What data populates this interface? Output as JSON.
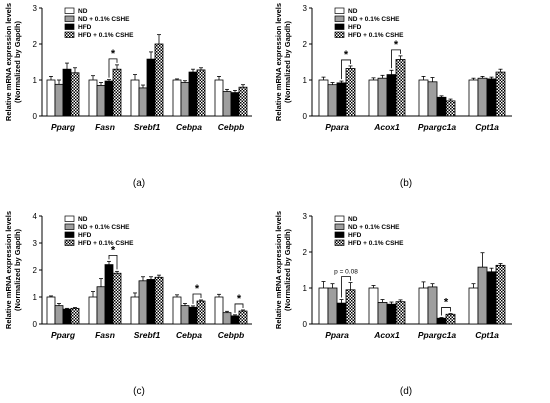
{
  "colors": {
    "nd": "#ffffff",
    "nd_cshe": "#9e9e9e",
    "hfd": "#000000",
    "hfd_cshe": "checker"
  },
  "chart_data": [
    {
      "panel": "(a)",
      "type": "bar",
      "ylabel": "Relative mRNA expression levels",
      "ylabel2": "(Normalized by Gapdh)",
      "ylim": [
        0,
        3
      ],
      "yticks": [
        "0",
        "1",
        "2",
        "3"
      ],
      "categories": [
        "Pparg",
        "Fasn",
        "Srebf1",
        "Cebpa",
        "Cebpb"
      ],
      "series": [
        {
          "name": "ND",
          "values": [
            1.0,
            1.0,
            1.0,
            1.0,
            1.0
          ],
          "errors": [
            0.1,
            0.12,
            0.15,
            0.03,
            0.1
          ]
        },
        {
          "name": "ND + 0.1% CSHE",
          "values": [
            0.88,
            0.85,
            0.78,
            0.93,
            0.68
          ],
          "errors": [
            0.12,
            0.08,
            0.08,
            0.05,
            0.06
          ]
        },
        {
          "name": "HFD",
          "values": [
            1.3,
            0.97,
            1.58,
            1.22,
            0.65
          ],
          "errors": [
            0.17,
            0.04,
            0.2,
            0.08,
            0.06
          ]
        },
        {
          "name": "HFD + 0.1% CSHE",
          "values": [
            1.2,
            1.3,
            2.0,
            1.28,
            0.8
          ],
          "errors": [
            0.14,
            0.12,
            0.26,
            0.06,
            0.07
          ]
        }
      ],
      "significance": [
        {
          "category": "Fasn",
          "from": 2,
          "to": 3,
          "label": "*"
        }
      ]
    },
    {
      "panel": "(b)",
      "type": "bar",
      "ylabel": "Relative mRNA expression levels",
      "ylabel2": "(Normalized by Gapdh)",
      "ylim": [
        0,
        3
      ],
      "yticks": [
        "0",
        "1",
        "2",
        "3"
      ],
      "categories": [
        "Ppara",
        "Acox1",
        "Ppargc1a",
        "Cpt1a"
      ],
      "series": [
        {
          "name": "ND",
          "values": [
            1.0,
            1.0,
            1.0,
            1.0
          ],
          "errors": [
            0.08,
            0.06,
            0.1,
            0.05
          ]
        },
        {
          "name": "ND + 0.1% CSHE",
          "values": [
            0.87,
            1.05,
            0.95,
            1.05
          ],
          "errors": [
            0.06,
            0.08,
            0.12,
            0.05
          ]
        },
        {
          "name": "HFD",
          "values": [
            0.92,
            1.15,
            0.52,
            1.03
          ],
          "errors": [
            0.05,
            0.12,
            0.04,
            0.05
          ]
        },
        {
          "name": "HFD + 0.1% CSHE",
          "values": [
            1.32,
            1.57,
            0.42,
            1.22
          ],
          "errors": [
            0.07,
            0.1,
            0.05,
            0.08
          ]
        }
      ],
      "significance": [
        {
          "category": "Ppara",
          "from": 2,
          "to": 3,
          "label": "*"
        },
        {
          "category": "Acox1",
          "from": 2,
          "to": 3,
          "label": "*"
        }
      ]
    },
    {
      "panel": "(c)",
      "type": "bar",
      "ylabel": "Relative mRNA expression levels",
      "ylabel2": "(Normalized by Gapdh)",
      "ylim": [
        0,
        4
      ],
      "yticks": [
        "0",
        "1",
        "2",
        "3",
        "4"
      ],
      "categories": [
        "Pparg",
        "Fasn",
        "Srebf1",
        "Cebpa",
        "Cebpb"
      ],
      "series": [
        {
          "name": "ND",
          "values": [
            1.0,
            1.0,
            1.0,
            1.0,
            1.0
          ],
          "errors": [
            0.04,
            0.2,
            0.15,
            0.08,
            0.1
          ]
        },
        {
          "name": "ND + 0.1% CSHE",
          "values": [
            0.68,
            1.38,
            1.6,
            0.68,
            0.42
          ],
          "errors": [
            0.08,
            0.3,
            0.15,
            0.08,
            0.05
          ]
        },
        {
          "name": "HFD",
          "values": [
            0.55,
            2.2,
            1.65,
            0.62,
            0.3
          ],
          "errors": [
            0.03,
            0.12,
            0.1,
            0.05,
            0.04
          ]
        },
        {
          "name": "HFD + 0.1% CSHE",
          "values": [
            0.58,
            1.88,
            1.73,
            0.85,
            0.48
          ],
          "errors": [
            0.03,
            0.07,
            0.08,
            0.04,
            0.04
          ]
        }
      ],
      "significance": [
        {
          "category": "Fasn",
          "from": 2,
          "to": 3,
          "label": "*"
        },
        {
          "category": "Cebpa",
          "from": 2,
          "to": 3,
          "label": "*"
        },
        {
          "category": "Cebpb",
          "from": 2,
          "to": 3,
          "label": "*"
        }
      ]
    },
    {
      "panel": "(d)",
      "type": "bar",
      "ylabel": "Relative mRNA expression levels",
      "ylabel2": "(Normalized by Gapdh)",
      "ylim": [
        0,
        3
      ],
      "yticks": [
        "0",
        "1",
        "2",
        "3"
      ],
      "categories": [
        "Ppara",
        "Acox1",
        "Ppargc1a",
        "Cpt1a"
      ],
      "series": [
        {
          "name": "ND",
          "values": [
            1.0,
            1.0,
            1.0,
            1.0
          ],
          "errors": [
            0.18,
            0.07,
            0.17,
            0.12
          ]
        },
        {
          "name": "ND + 0.1% CSHE",
          "values": [
            1.0,
            0.6,
            1.03,
            1.58
          ],
          "errors": [
            0.12,
            0.08,
            0.09,
            0.4
          ]
        },
        {
          "name": "HFD",
          "values": [
            0.58,
            0.55,
            0.16,
            1.45
          ],
          "errors": [
            0.1,
            0.06,
            0.02,
            0.1
          ]
        },
        {
          "name": "HFD + 0.1% CSHE",
          "values": [
            0.95,
            0.62,
            0.27,
            1.63
          ],
          "errors": [
            0.2,
            0.05,
            0.02,
            0.05
          ]
        }
      ],
      "significance": [
        {
          "category": "Ppara",
          "from": 2,
          "to": 3,
          "label": "p = 0.08",
          "italic_p": true
        },
        {
          "category": "Ppargc1a",
          "from": 2,
          "to": 3,
          "label": "*"
        }
      ]
    }
  ]
}
